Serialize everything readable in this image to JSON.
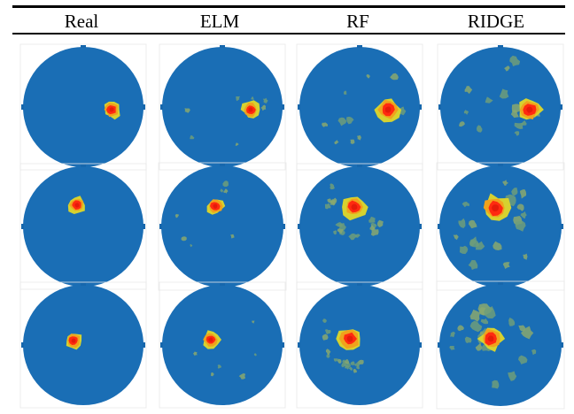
{
  "columns": [
    "Real",
    "ELM",
    "RF",
    "RIDGE"
  ],
  "colors": {
    "background_disc": "#1a6eb5",
    "disc_shade": "#1667ad",
    "noise": "#6e9e7a",
    "noise_light": "#8aa86e",
    "rim": "#d6d22f",
    "halo": "#f0a21c",
    "core": "#ff2a10",
    "core_dark": "#e51b0a"
  },
  "rows": [
    {
      "cells": [
        {
          "method": "Real",
          "hot": {
            "level": "small"
          },
          "noise": "none"
        },
        {
          "method": "ELM",
          "hot": {
            "level": "small"
          },
          "noise": "sparse"
        },
        {
          "method": "RF",
          "hot": {
            "level": "medium"
          },
          "noise": "light"
        },
        {
          "method": "RIDGE",
          "hot": {
            "level": "medium"
          },
          "noise": "moderate"
        }
      ]
    },
    {
      "cells": [
        {
          "method": "Real",
          "hot": {
            "level": "small"
          },
          "noise": "none"
        },
        {
          "method": "ELM",
          "hot": {
            "level": "small"
          },
          "noise": "sparse"
        },
        {
          "method": "RF",
          "hot": {
            "level": "medium"
          },
          "noise": "ring"
        },
        {
          "method": "RIDGE",
          "hot": {
            "level": "large"
          },
          "noise": "heavy"
        }
      ]
    },
    {
      "cells": [
        {
          "method": "Real",
          "hot": {
            "level": "small"
          },
          "noise": "none"
        },
        {
          "method": "ELM",
          "hot": {
            "level": "small"
          },
          "noise": "sparse"
        },
        {
          "method": "RF",
          "hot": {
            "level": "medium"
          },
          "noise": "ring"
        },
        {
          "method": "RIDGE",
          "hot": {
            "level": "medium"
          },
          "noise": "heavy"
        }
      ]
    }
  ]
}
